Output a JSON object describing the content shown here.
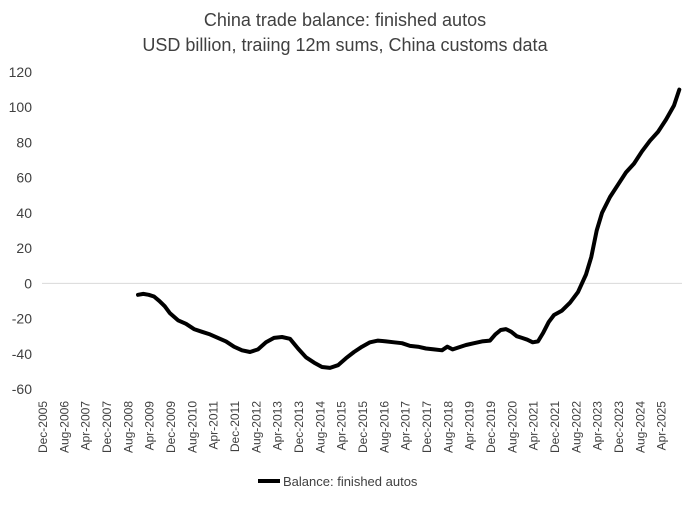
{
  "chart_data": {
    "type": "line",
    "title": "China trade balance: finished autos",
    "subtitle": "USD billion, traiing 12m sums, China customs data",
    "xlabel": "",
    "ylabel": "",
    "ylim": [
      -60,
      120
    ],
    "yticks": [
      -60,
      -40,
      -20,
      0,
      20,
      40,
      60,
      80,
      100,
      120
    ],
    "xlim": [
      "2005-12",
      "2025-12"
    ],
    "xtick_labels": [
      "Dec-2005",
      "Aug-2006",
      "Apr-2007",
      "Dec-2007",
      "Aug-2008",
      "Apr-2009",
      "Dec-2009",
      "Aug-2010",
      "Apr-2011",
      "Dec-2011",
      "Aug-2012",
      "Apr-2013",
      "Dec-2013",
      "Aug-2014",
      "Apr-2015",
      "Dec-2015",
      "Aug-2016",
      "Apr-2017",
      "Dec-2017",
      "Aug-2018",
      "Apr-2019",
      "Dec-2019",
      "Aug-2020",
      "Apr-2021",
      "Dec-2021",
      "Aug-2022",
      "Apr-2023",
      "Dec-2023",
      "Aug-2024",
      "Apr-2025"
    ],
    "grid": false,
    "legend_position": "bottom",
    "series": [
      {
        "name": "Balance: finished autos",
        "color": "#000000",
        "points": [
          [
            "2008-12",
            -6.5
          ],
          [
            "2009-02",
            -6.0
          ],
          [
            "2009-04",
            -6.5
          ],
          [
            "2009-06",
            -7.5
          ],
          [
            "2009-08",
            -10.0
          ],
          [
            "2009-10",
            -13.0
          ],
          [
            "2009-12",
            -17.0
          ],
          [
            "2010-03",
            -21.0
          ],
          [
            "2010-06",
            -23.0
          ],
          [
            "2010-09",
            -26.0
          ],
          [
            "2010-12",
            -27.5
          ],
          [
            "2011-03",
            -29.0
          ],
          [
            "2011-06",
            -31.0
          ],
          [
            "2011-09",
            -33.0
          ],
          [
            "2011-12",
            -36.0
          ],
          [
            "2012-03",
            -38.0
          ],
          [
            "2012-06",
            -39.0
          ],
          [
            "2012-09",
            -37.5
          ],
          [
            "2012-12",
            -33.5
          ],
          [
            "2013-03",
            -31.0
          ],
          [
            "2013-06",
            -30.5
          ],
          [
            "2013-09",
            -31.5
          ],
          [
            "2013-12",
            -37.0
          ],
          [
            "2014-03",
            -42.0
          ],
          [
            "2014-06",
            -45.0
          ],
          [
            "2014-09",
            -47.5
          ],
          [
            "2014-12",
            -48.0
          ],
          [
            "2015-03",
            -46.5
          ],
          [
            "2015-06",
            -42.5
          ],
          [
            "2015-09",
            -39.0
          ],
          [
            "2015-12",
            -36.0
          ],
          [
            "2016-03",
            -33.5
          ],
          [
            "2016-06",
            -32.5
          ],
          [
            "2016-09",
            -33.0
          ],
          [
            "2016-12",
            -33.5
          ],
          [
            "2017-03",
            -34.0
          ],
          [
            "2017-06",
            -35.5
          ],
          [
            "2017-09",
            -36.0
          ],
          [
            "2017-12",
            -37.0
          ],
          [
            "2018-03",
            -37.5
          ],
          [
            "2018-06",
            -38.0
          ],
          [
            "2018-08",
            -36.0
          ],
          [
            "2018-10",
            -37.5
          ],
          [
            "2018-12",
            -36.5
          ],
          [
            "2019-03",
            -35.0
          ],
          [
            "2019-06",
            -34.0
          ],
          [
            "2019-09",
            -33.0
          ],
          [
            "2019-12",
            -32.5
          ],
          [
            "2020-02",
            -29.0
          ],
          [
            "2020-04",
            -26.5
          ],
          [
            "2020-06",
            -26.0
          ],
          [
            "2020-08",
            -27.5
          ],
          [
            "2020-10",
            -30.0
          ],
          [
            "2020-12",
            -31.0
          ],
          [
            "2021-02",
            -32.0
          ],
          [
            "2021-04",
            -33.5
          ],
          [
            "2021-06",
            -33.0
          ],
          [
            "2021-08",
            -28.0
          ],
          [
            "2021-10",
            -22.0
          ],
          [
            "2021-12",
            -18.0
          ],
          [
            "2022-03",
            -15.5
          ],
          [
            "2022-06",
            -11.0
          ],
          [
            "2022-09",
            -5.0
          ],
          [
            "2022-12",
            5.0
          ],
          [
            "2023-02",
            15.0
          ],
          [
            "2023-04",
            30.0
          ],
          [
            "2023-06",
            40.0
          ],
          [
            "2023-09",
            49.0
          ],
          [
            "2023-12",
            56.0
          ],
          [
            "2024-03",
            63.0
          ],
          [
            "2024-06",
            68.0
          ],
          [
            "2024-09",
            75.0
          ],
          [
            "2024-12",
            81.0
          ],
          [
            "2025-03",
            86.0
          ],
          [
            "2025-06",
            93.0
          ],
          [
            "2025-09",
            101.0
          ],
          [
            "2025-11",
            110.0
          ]
        ]
      }
    ]
  }
}
